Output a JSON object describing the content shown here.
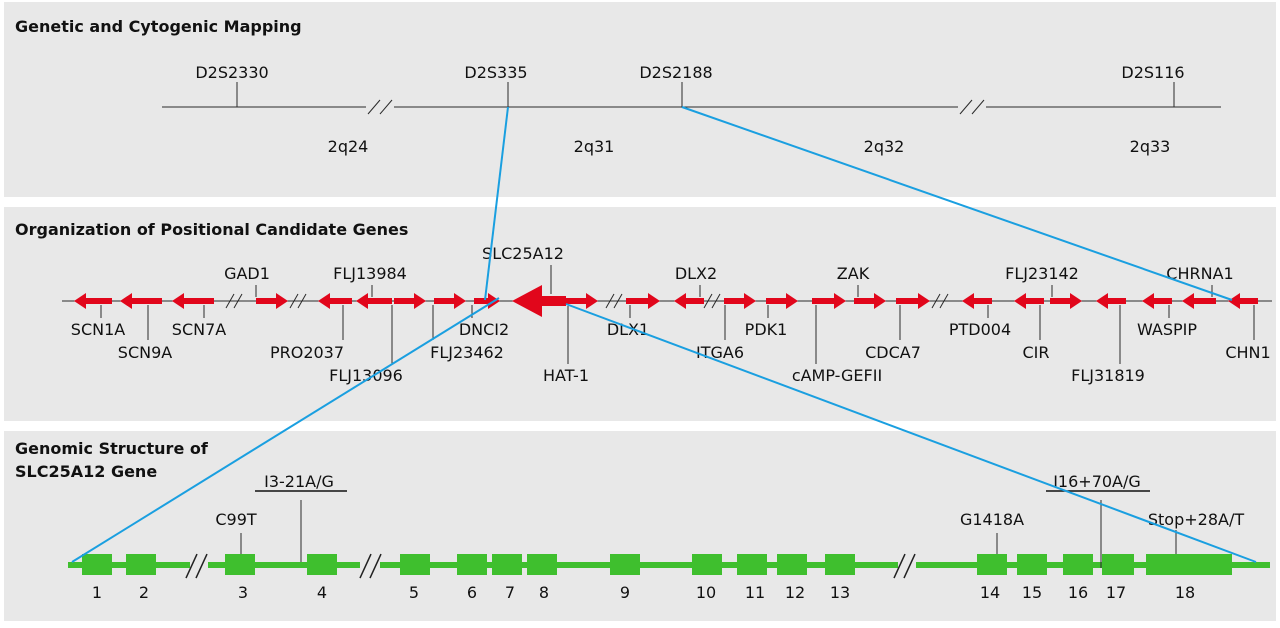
{
  "panels": {
    "genetic": "Genetic and Cytogenic Mapping",
    "positional": "Organization of Positional Candidate Genes",
    "genomic_line1": "Genomic Structure of",
    "genomic_line2": "SLC25A12 Gene"
  },
  "markers": [
    "D2S2330",
    "D2S335",
    "D2S2188",
    "D2S116"
  ],
  "bands": [
    "2q24",
    "2q31",
    "2q32",
    "2q33"
  ],
  "genes_above": [
    "GAD1",
    "FLJ13984",
    "SLC25A12",
    "DLX2",
    "ZAK",
    "FLJ23142",
    "CHRNA1"
  ],
  "genes_below": [
    "SCN1A",
    "SCN9A",
    "SCN7A",
    "PRO2037",
    "FLJ13096",
    "FLJ23462",
    "DNCI2",
    "HAT-1",
    "DLX1",
    "ITGA6",
    "PDK1",
    "cAMP-GEFII",
    "CDCA7",
    "PTD004",
    "CIR",
    "FLJ31819",
    "WASPIP",
    "CHN1"
  ],
  "variants": [
    "C99T",
    "I3-21A/G",
    "G1418A",
    "I16+70A/G",
    "Stop+28A/T"
  ],
  "exons": [
    "1",
    "2",
    "3",
    "4",
    "5",
    "6",
    "7",
    "8",
    "9",
    "10",
    "11",
    "12",
    "13",
    "14",
    "15",
    "16",
    "17",
    "18"
  ],
  "colors": {
    "panel": "#e8e8e8",
    "gene": "#e1061b",
    "exon": "#3fbf2e",
    "zoom": "#1a9fe0"
  }
}
